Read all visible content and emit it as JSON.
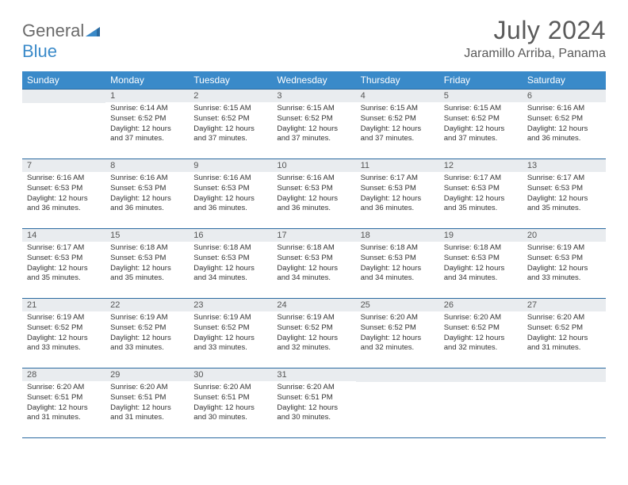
{
  "logo": {
    "gray": "General",
    "blue": "Blue"
  },
  "header": {
    "title": "July 2024",
    "location": "Jaramillo Arriba, Panama"
  },
  "colors": {
    "header_bg": "#3a8ac9",
    "header_border": "#2a6aa0",
    "daynum_bg": "#e9ecef",
    "text": "#333333",
    "title": "#5a5a5a"
  },
  "weekdays": [
    "Sunday",
    "Monday",
    "Tuesday",
    "Wednesday",
    "Thursday",
    "Friday",
    "Saturday"
  ],
  "weeks": [
    [
      null,
      {
        "n": "1",
        "sr": "Sunrise: 6:14 AM",
        "ss": "Sunset: 6:52 PM",
        "dl": "Daylight: 12 hours and 37 minutes."
      },
      {
        "n": "2",
        "sr": "Sunrise: 6:15 AM",
        "ss": "Sunset: 6:52 PM",
        "dl": "Daylight: 12 hours and 37 minutes."
      },
      {
        "n": "3",
        "sr": "Sunrise: 6:15 AM",
        "ss": "Sunset: 6:52 PM",
        "dl": "Daylight: 12 hours and 37 minutes."
      },
      {
        "n": "4",
        "sr": "Sunrise: 6:15 AM",
        "ss": "Sunset: 6:52 PM",
        "dl": "Daylight: 12 hours and 37 minutes."
      },
      {
        "n": "5",
        "sr": "Sunrise: 6:15 AM",
        "ss": "Sunset: 6:52 PM",
        "dl": "Daylight: 12 hours and 37 minutes."
      },
      {
        "n": "6",
        "sr": "Sunrise: 6:16 AM",
        "ss": "Sunset: 6:52 PM",
        "dl": "Daylight: 12 hours and 36 minutes."
      }
    ],
    [
      {
        "n": "7",
        "sr": "Sunrise: 6:16 AM",
        "ss": "Sunset: 6:53 PM",
        "dl": "Daylight: 12 hours and 36 minutes."
      },
      {
        "n": "8",
        "sr": "Sunrise: 6:16 AM",
        "ss": "Sunset: 6:53 PM",
        "dl": "Daylight: 12 hours and 36 minutes."
      },
      {
        "n": "9",
        "sr": "Sunrise: 6:16 AM",
        "ss": "Sunset: 6:53 PM",
        "dl": "Daylight: 12 hours and 36 minutes."
      },
      {
        "n": "10",
        "sr": "Sunrise: 6:16 AM",
        "ss": "Sunset: 6:53 PM",
        "dl": "Daylight: 12 hours and 36 minutes."
      },
      {
        "n": "11",
        "sr": "Sunrise: 6:17 AM",
        "ss": "Sunset: 6:53 PM",
        "dl": "Daylight: 12 hours and 36 minutes."
      },
      {
        "n": "12",
        "sr": "Sunrise: 6:17 AM",
        "ss": "Sunset: 6:53 PM",
        "dl": "Daylight: 12 hours and 35 minutes."
      },
      {
        "n": "13",
        "sr": "Sunrise: 6:17 AM",
        "ss": "Sunset: 6:53 PM",
        "dl": "Daylight: 12 hours and 35 minutes."
      }
    ],
    [
      {
        "n": "14",
        "sr": "Sunrise: 6:17 AM",
        "ss": "Sunset: 6:53 PM",
        "dl": "Daylight: 12 hours and 35 minutes."
      },
      {
        "n": "15",
        "sr": "Sunrise: 6:18 AM",
        "ss": "Sunset: 6:53 PM",
        "dl": "Daylight: 12 hours and 35 minutes."
      },
      {
        "n": "16",
        "sr": "Sunrise: 6:18 AM",
        "ss": "Sunset: 6:53 PM",
        "dl": "Daylight: 12 hours and 34 minutes."
      },
      {
        "n": "17",
        "sr": "Sunrise: 6:18 AM",
        "ss": "Sunset: 6:53 PM",
        "dl": "Daylight: 12 hours and 34 minutes."
      },
      {
        "n": "18",
        "sr": "Sunrise: 6:18 AM",
        "ss": "Sunset: 6:53 PM",
        "dl": "Daylight: 12 hours and 34 minutes."
      },
      {
        "n": "19",
        "sr": "Sunrise: 6:18 AM",
        "ss": "Sunset: 6:53 PM",
        "dl": "Daylight: 12 hours and 34 minutes."
      },
      {
        "n": "20",
        "sr": "Sunrise: 6:19 AM",
        "ss": "Sunset: 6:53 PM",
        "dl": "Daylight: 12 hours and 33 minutes."
      }
    ],
    [
      {
        "n": "21",
        "sr": "Sunrise: 6:19 AM",
        "ss": "Sunset: 6:52 PM",
        "dl": "Daylight: 12 hours and 33 minutes."
      },
      {
        "n": "22",
        "sr": "Sunrise: 6:19 AM",
        "ss": "Sunset: 6:52 PM",
        "dl": "Daylight: 12 hours and 33 minutes."
      },
      {
        "n": "23",
        "sr": "Sunrise: 6:19 AM",
        "ss": "Sunset: 6:52 PM",
        "dl": "Daylight: 12 hours and 33 minutes."
      },
      {
        "n": "24",
        "sr": "Sunrise: 6:19 AM",
        "ss": "Sunset: 6:52 PM",
        "dl": "Daylight: 12 hours and 32 minutes."
      },
      {
        "n": "25",
        "sr": "Sunrise: 6:20 AM",
        "ss": "Sunset: 6:52 PM",
        "dl": "Daylight: 12 hours and 32 minutes."
      },
      {
        "n": "26",
        "sr": "Sunrise: 6:20 AM",
        "ss": "Sunset: 6:52 PM",
        "dl": "Daylight: 12 hours and 32 minutes."
      },
      {
        "n": "27",
        "sr": "Sunrise: 6:20 AM",
        "ss": "Sunset: 6:52 PM",
        "dl": "Daylight: 12 hours and 31 minutes."
      }
    ],
    [
      {
        "n": "28",
        "sr": "Sunrise: 6:20 AM",
        "ss": "Sunset: 6:51 PM",
        "dl": "Daylight: 12 hours and 31 minutes."
      },
      {
        "n": "29",
        "sr": "Sunrise: 6:20 AM",
        "ss": "Sunset: 6:51 PM",
        "dl": "Daylight: 12 hours and 31 minutes."
      },
      {
        "n": "30",
        "sr": "Sunrise: 6:20 AM",
        "ss": "Sunset: 6:51 PM",
        "dl": "Daylight: 12 hours and 30 minutes."
      },
      {
        "n": "31",
        "sr": "Sunrise: 6:20 AM",
        "ss": "Sunset: 6:51 PM",
        "dl": "Daylight: 12 hours and 30 minutes."
      },
      null,
      null,
      null
    ]
  ]
}
